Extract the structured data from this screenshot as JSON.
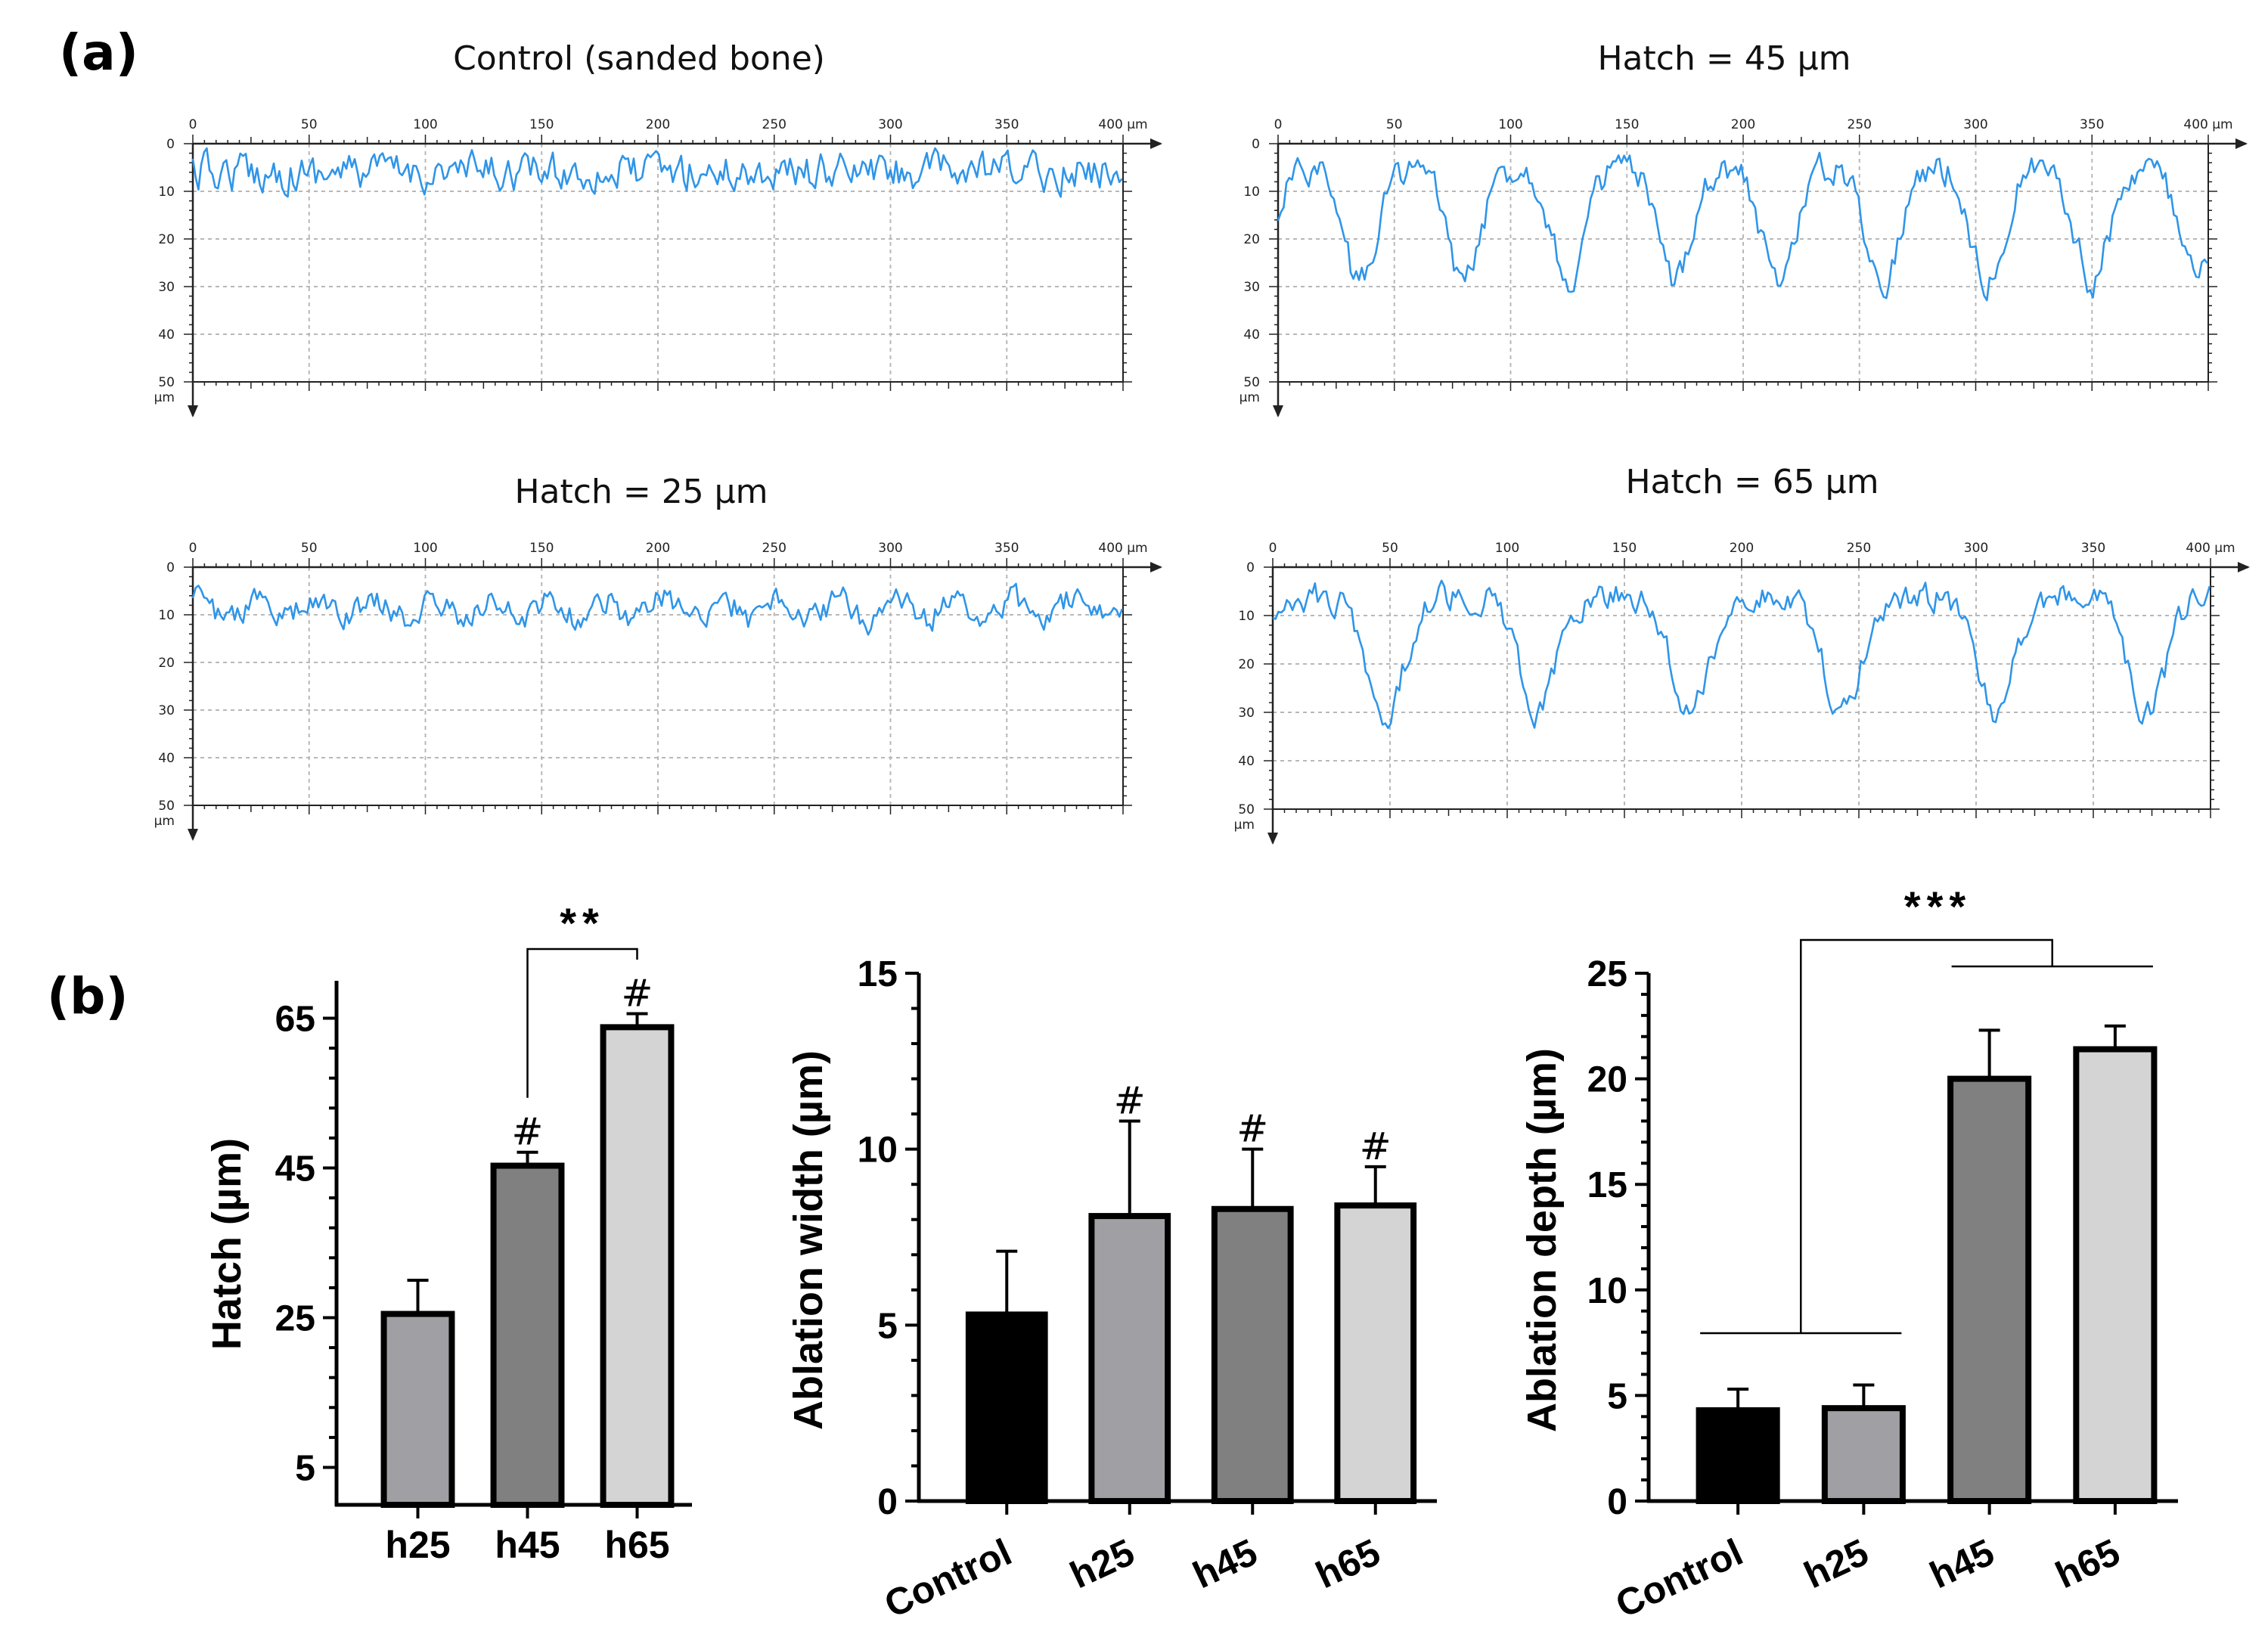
{
  "panel_labels": {
    "a": "(a)",
    "b": "(b)"
  },
  "chart_data": [
    {
      "type": "line",
      "title": "Control (sanded bone)",
      "x_unit": "400 µm",
      "y_unit": "µm",
      "xlim": [
        0,
        400
      ],
      "ylim": [
        0,
        50
      ],
      "xticks": [
        "0",
        "50",
        "100",
        "150",
        "200",
        "250",
        "300",
        "350"
      ],
      "yticks": [
        "0",
        "10",
        "20",
        "30",
        "40",
        "50"
      ],
      "profile": {
        "baseline": 6,
        "noise": 2.2,
        "period": 400,
        "amplitude": 0,
        "dip_width": 1,
        "phase": 0
      }
    },
    {
      "type": "line",
      "title": "Hatch = 45 µm",
      "x_unit": "400 µm",
      "y_unit": "µm",
      "xlim": [
        0,
        400
      ],
      "ylim": [
        0,
        50
      ],
      "xticks": [
        "0",
        "50",
        "100",
        "150",
        "200",
        "250",
        "300",
        "350"
      ],
      "yticks": [
        "0",
        "10",
        "20",
        "30",
        "40",
        "50"
      ],
      "profile": {
        "baseline": 5,
        "noise": 1.8,
        "period": 45,
        "amplitude": 24,
        "dip_width": 7,
        "phase": 35
      }
    },
    {
      "type": "line",
      "title": "Hatch = 25 µm",
      "x_unit": "400 µm",
      "y_unit": "µm",
      "xlim": [
        0,
        400
      ],
      "ylim": [
        0,
        50
      ],
      "xticks": [
        "0",
        "50",
        "100",
        "150",
        "200",
        "250",
        "300",
        "350"
      ],
      "yticks": [
        "0",
        "10",
        "20",
        "30",
        "40",
        "50"
      ],
      "profile": {
        "baseline": 6,
        "noise": 1.6,
        "period": 25,
        "amplitude": 5,
        "dip_width": 6,
        "phase": 40
      }
    },
    {
      "type": "line",
      "title": "Hatch = 65 µm",
      "x_unit": "400 µm",
      "y_unit": "µm",
      "xlim": [
        0,
        400
      ],
      "ylim": [
        0,
        50
      ],
      "xticks": [
        "0",
        "50",
        "100",
        "150",
        "200",
        "250",
        "300",
        "350"
      ],
      "yticks": [
        "0",
        "10",
        "20",
        "30",
        "40",
        "50"
      ],
      "profile": {
        "baseline": 6,
        "noise": 1.6,
        "period": 65,
        "amplitude": 24,
        "dip_width": 8,
        "phase": 48
      }
    },
    {
      "type": "bar",
      "title": "",
      "ylabel": "Hatch (µm)",
      "ylim": [
        0,
        70
      ],
      "yticks": [
        "5",
        "25",
        "45",
        "65"
      ],
      "categories": [
        "h25",
        "h45",
        "h65"
      ],
      "values": [
        25.5,
        45.3,
        63.8
      ],
      "errors": [
        4.5,
        1.8,
        1.8
      ],
      "colors": [
        "#a09fa4",
        "#808080",
        "#d4d4d4"
      ],
      "markers": [
        "",
        "#",
        "#"
      ],
      "significance": "**"
    },
    {
      "type": "bar",
      "title": "",
      "ylabel": "Ablation width (µm)",
      "ylim": [
        0,
        15
      ],
      "yticks": [
        "0",
        "5",
        "10",
        "15"
      ],
      "categories": [
        "Control",
        "h25",
        "h45",
        "h65"
      ],
      "values": [
        5.3,
        8.1,
        8.3,
        8.4
      ],
      "errors": [
        1.8,
        2.7,
        1.7,
        1.1
      ],
      "colors": [
        "#000000",
        "#a09fa4",
        "#808080",
        "#d4d4d4"
      ],
      "markers": [
        "",
        "#",
        "#",
        "#"
      ]
    },
    {
      "type": "bar",
      "title": "",
      "ylabel": "Ablation depth (µm)",
      "ylim": [
        0,
        25
      ],
      "yticks": [
        "0",
        "5",
        "10",
        "15",
        "20",
        "25"
      ],
      "categories": [
        "Control",
        "h25",
        "h45",
        "h65"
      ],
      "values": [
        4.3,
        4.4,
        20.0,
        21.4
      ],
      "errors": [
        1.0,
        1.1,
        2.3,
        1.1
      ],
      "colors": [
        "#000000",
        "#a09fa4",
        "#808080",
        "#d4d4d4"
      ],
      "markers": [
        "",
        "",
        "",
        ""
      ],
      "significance": "***"
    }
  ]
}
